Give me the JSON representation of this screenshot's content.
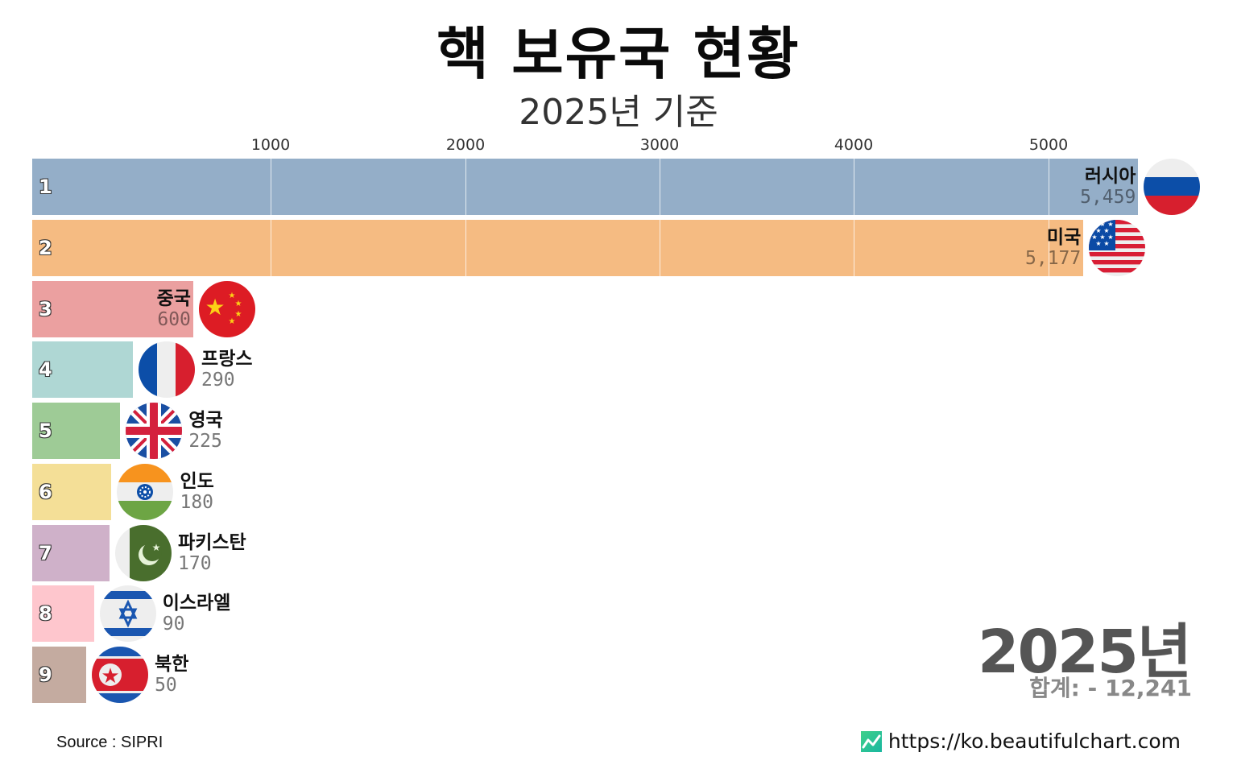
{
  "header": {
    "title": "핵 보유국 현황",
    "subtitle": "2025년 기준"
  },
  "axis": {
    "ticks": [
      {
        "label": "1000",
        "x": 336
      },
      {
        "label": "2000",
        "x": 578
      },
      {
        "label": "3000",
        "x": 819
      },
      {
        "label": "4000",
        "x": 1060
      },
      {
        "label": "5000",
        "x": 1302
      }
    ]
  },
  "rows": [
    {
      "rank": "1",
      "name": "러시아",
      "value": "5,459",
      "color": "#94aec8",
      "flag": "russia"
    },
    {
      "rank": "2",
      "name": "미국",
      "value": "5,177",
      "color": "#f5bb82",
      "flag": "usa"
    },
    {
      "rank": "3",
      "name": "중국",
      "value": "600",
      "color": "#eba0a0",
      "flag": "china"
    },
    {
      "rank": "4",
      "name": "프랑스",
      "value": "290",
      "color": "#afd7d4",
      "flag": "france"
    },
    {
      "rank": "5",
      "name": "영국",
      "value": "225",
      "color": "#9ecb96",
      "flag": "uk"
    },
    {
      "rank": "6",
      "name": "인도",
      "value": "180",
      "color": "#f4df97",
      "flag": "india"
    },
    {
      "rank": "7",
      "name": "파키스탄",
      "value": "170",
      "color": "#cfb1c9",
      "flag": "pakistan"
    },
    {
      "rank": "8",
      "name": "이스라엘",
      "value": "90",
      "color": "#fec6cd",
      "flag": "israel"
    },
    {
      "rank": "9",
      "name": "북한",
      "value": "50",
      "color": "#c4aba0",
      "flag": "north-korea"
    }
  ],
  "summary": {
    "year": "2025년",
    "total": "합계: - 12,241"
  },
  "footer": {
    "source": "Source : SIPRI",
    "credit": "https://ko.beautifulchart.com"
  },
  "chart_data": {
    "type": "bar",
    "orientation": "horizontal",
    "title": "핵 보유국 현황",
    "subtitle": "2025년 기준",
    "categories": [
      "러시아",
      "미국",
      "중국",
      "프랑스",
      "영국",
      "인도",
      "파키스탄",
      "이스라엘",
      "북한"
    ],
    "values": [
      5459,
      5177,
      600,
      290,
      225,
      180,
      170,
      90,
      50
    ],
    "xlabel": "",
    "ylabel": "",
    "xticks": [
      1000,
      2000,
      3000,
      4000,
      5000
    ],
    "xlim": [
      0,
      5700
    ],
    "grid": true,
    "legend": null,
    "annotations": [
      "2025년",
      "합계: - 12,241",
      "Source : SIPRI",
      "https://ko.beautifulchart.com"
    ],
    "total": 12241
  }
}
